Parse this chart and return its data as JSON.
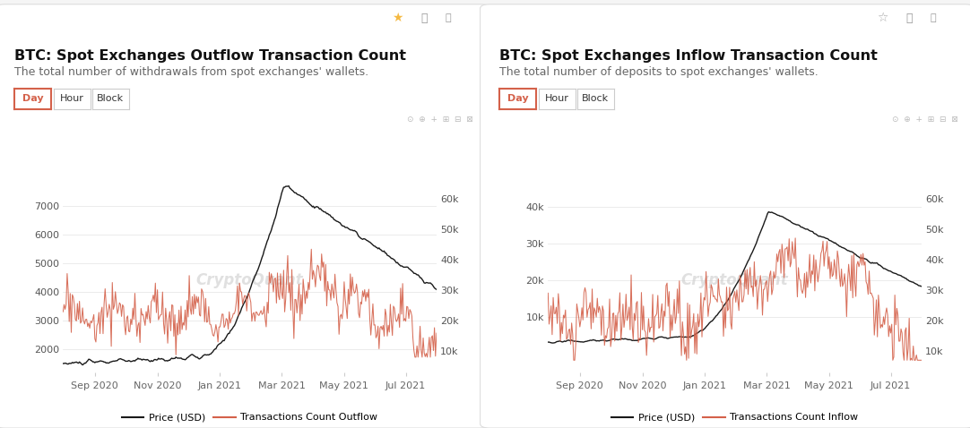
{
  "chart1": {
    "title": "BTC: Spot Exchanges Outflow Transaction Count",
    "subtitle": "The total number of withdrawals from spot exchanges' wallets.",
    "left_yticks": [
      2000,
      3000,
      4000,
      5000,
      6000,
      7000
    ],
    "right_yticks": [
      10000,
      20000,
      30000,
      40000,
      50000,
      60000
    ],
    "right_yticklabels": [
      "10k",
      "20k",
      "30k",
      "40k",
      "50k",
      "60k"
    ],
    "left_yticklabels": [
      "2000",
      "3000",
      "4000",
      "5000",
      "6000",
      "7000"
    ],
    "ylim_left": [
      1200,
      8500
    ],
    "ylim_right": [
      3000,
      72000
    ],
    "legend_price": "Price (USD)",
    "legend_tx": "Transactions Count Outflow",
    "watermark": "CryptoQuant"
  },
  "chart2": {
    "title": "BTC: Spot Exchanges Inflow Transaction Count",
    "subtitle": "The total number of deposits to spot exchanges' wallets.",
    "left_yticks": [
      10000,
      20000,
      30000,
      40000
    ],
    "right_yticks": [
      10000,
      20000,
      30000,
      40000,
      50000,
      60000
    ],
    "right_yticklabels": [
      "10k",
      "20k",
      "30k",
      "40k",
      "50k",
      "60k"
    ],
    "left_yticklabels": [
      "10k",
      "20k",
      "30k",
      "40k"
    ],
    "ylim_left": [
      -5000,
      52000
    ],
    "ylim_right": [
      3000,
      72000
    ],
    "legend_price": "Price (USD)",
    "legend_tx": "Transactions Count Inflow",
    "watermark": "CryptoQuant"
  },
  "xtick_labels": [
    "Sep 2020",
    "Nov 2020",
    "Jan 2021",
    "Mar 2021",
    "May 2021",
    "Jul 2021"
  ],
  "bg_color": "#f5f5f5",
  "card_bg": "#ffffff",
  "price_color": "#1a1a1a",
  "tx_color": "#d4614a",
  "grid_color": "#e8e8e8",
  "title_fontsize": 11.5,
  "subtitle_fontsize": 9,
  "tick_fontsize": 8,
  "legend_fontsize": 8,
  "day_btn_color": "#d4614a",
  "day_btn_text": "Day",
  "hour_btn_text": "Hour",
  "block_btn_text": "Block"
}
